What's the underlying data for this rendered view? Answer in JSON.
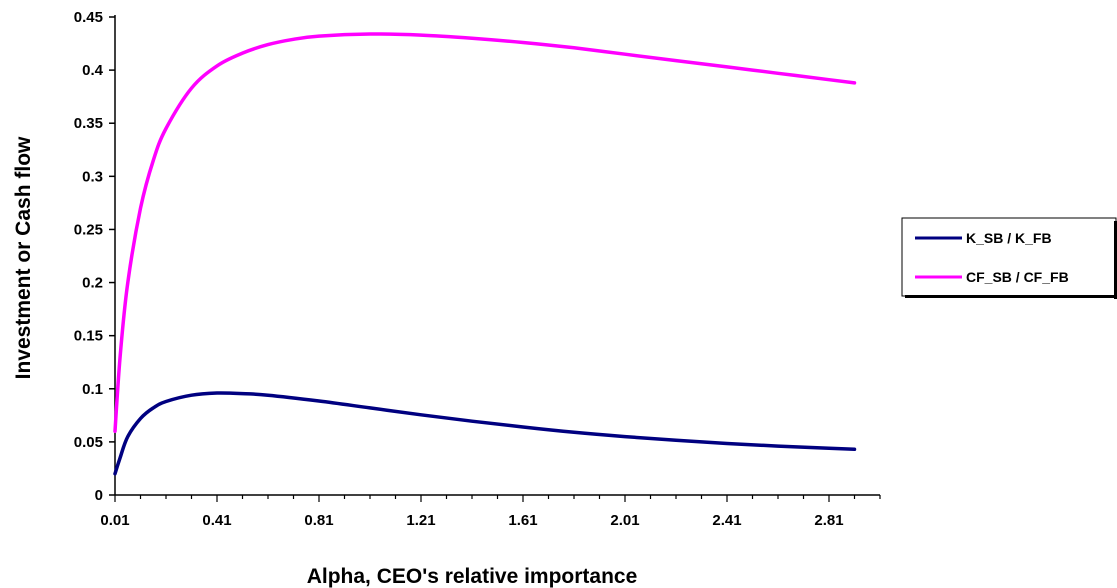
{
  "chart_data": {
    "type": "line",
    "title": "",
    "xlabel": "Alpha, CEO's relative importance",
    "ylabel": "Investment or Cash flow",
    "x_ticks": [
      "0.01",
      "0.41",
      "0.81",
      "1.21",
      "1.61",
      "2.01",
      "2.41",
      "2.81"
    ],
    "y_ticks": [
      "0",
      "0.05",
      "0.1",
      "0.15",
      "0.2",
      "0.25",
      "0.3",
      "0.35",
      "0.4",
      "0.45"
    ],
    "xlim": [
      0.01,
      3.01
    ],
    "ylim": [
      0,
      0.45
    ],
    "grid": false,
    "legend_position": "right",
    "series": [
      {
        "name": "K_SB / K_FB",
        "color": "#000080",
        "x": [
          0.01,
          0.03,
          0.06,
          0.11,
          0.16,
          0.21,
          0.31,
          0.41,
          0.51,
          0.61,
          0.81,
          1.01,
          1.21,
          1.41,
          1.61,
          1.81,
          2.01,
          2.21,
          2.41,
          2.61,
          2.81,
          2.91
        ],
        "y": [
          0.02,
          0.035,
          0.055,
          0.072,
          0.082,
          0.088,
          0.094,
          0.096,
          0.0955,
          0.094,
          0.0885,
          0.082,
          0.0755,
          0.0695,
          0.064,
          0.059,
          0.055,
          0.0515,
          0.0485,
          0.046,
          0.044,
          0.043
        ]
      },
      {
        "name": "CF_SB / CF_FB",
        "color": "#ff00ff",
        "x": [
          0.01,
          0.03,
          0.06,
          0.11,
          0.16,
          0.21,
          0.31,
          0.41,
          0.51,
          0.61,
          0.71,
          0.81,
          1.01,
          1.21,
          1.41,
          1.61,
          1.81,
          2.01,
          2.21,
          2.41,
          2.61,
          2.81,
          2.91
        ],
        "y": [
          0.06,
          0.13,
          0.2,
          0.27,
          0.315,
          0.345,
          0.383,
          0.404,
          0.416,
          0.424,
          0.429,
          0.432,
          0.434,
          0.433,
          0.43,
          0.426,
          0.421,
          0.415,
          0.409,
          0.403,
          0.397,
          0.391,
          0.388
        ]
      }
    ]
  }
}
